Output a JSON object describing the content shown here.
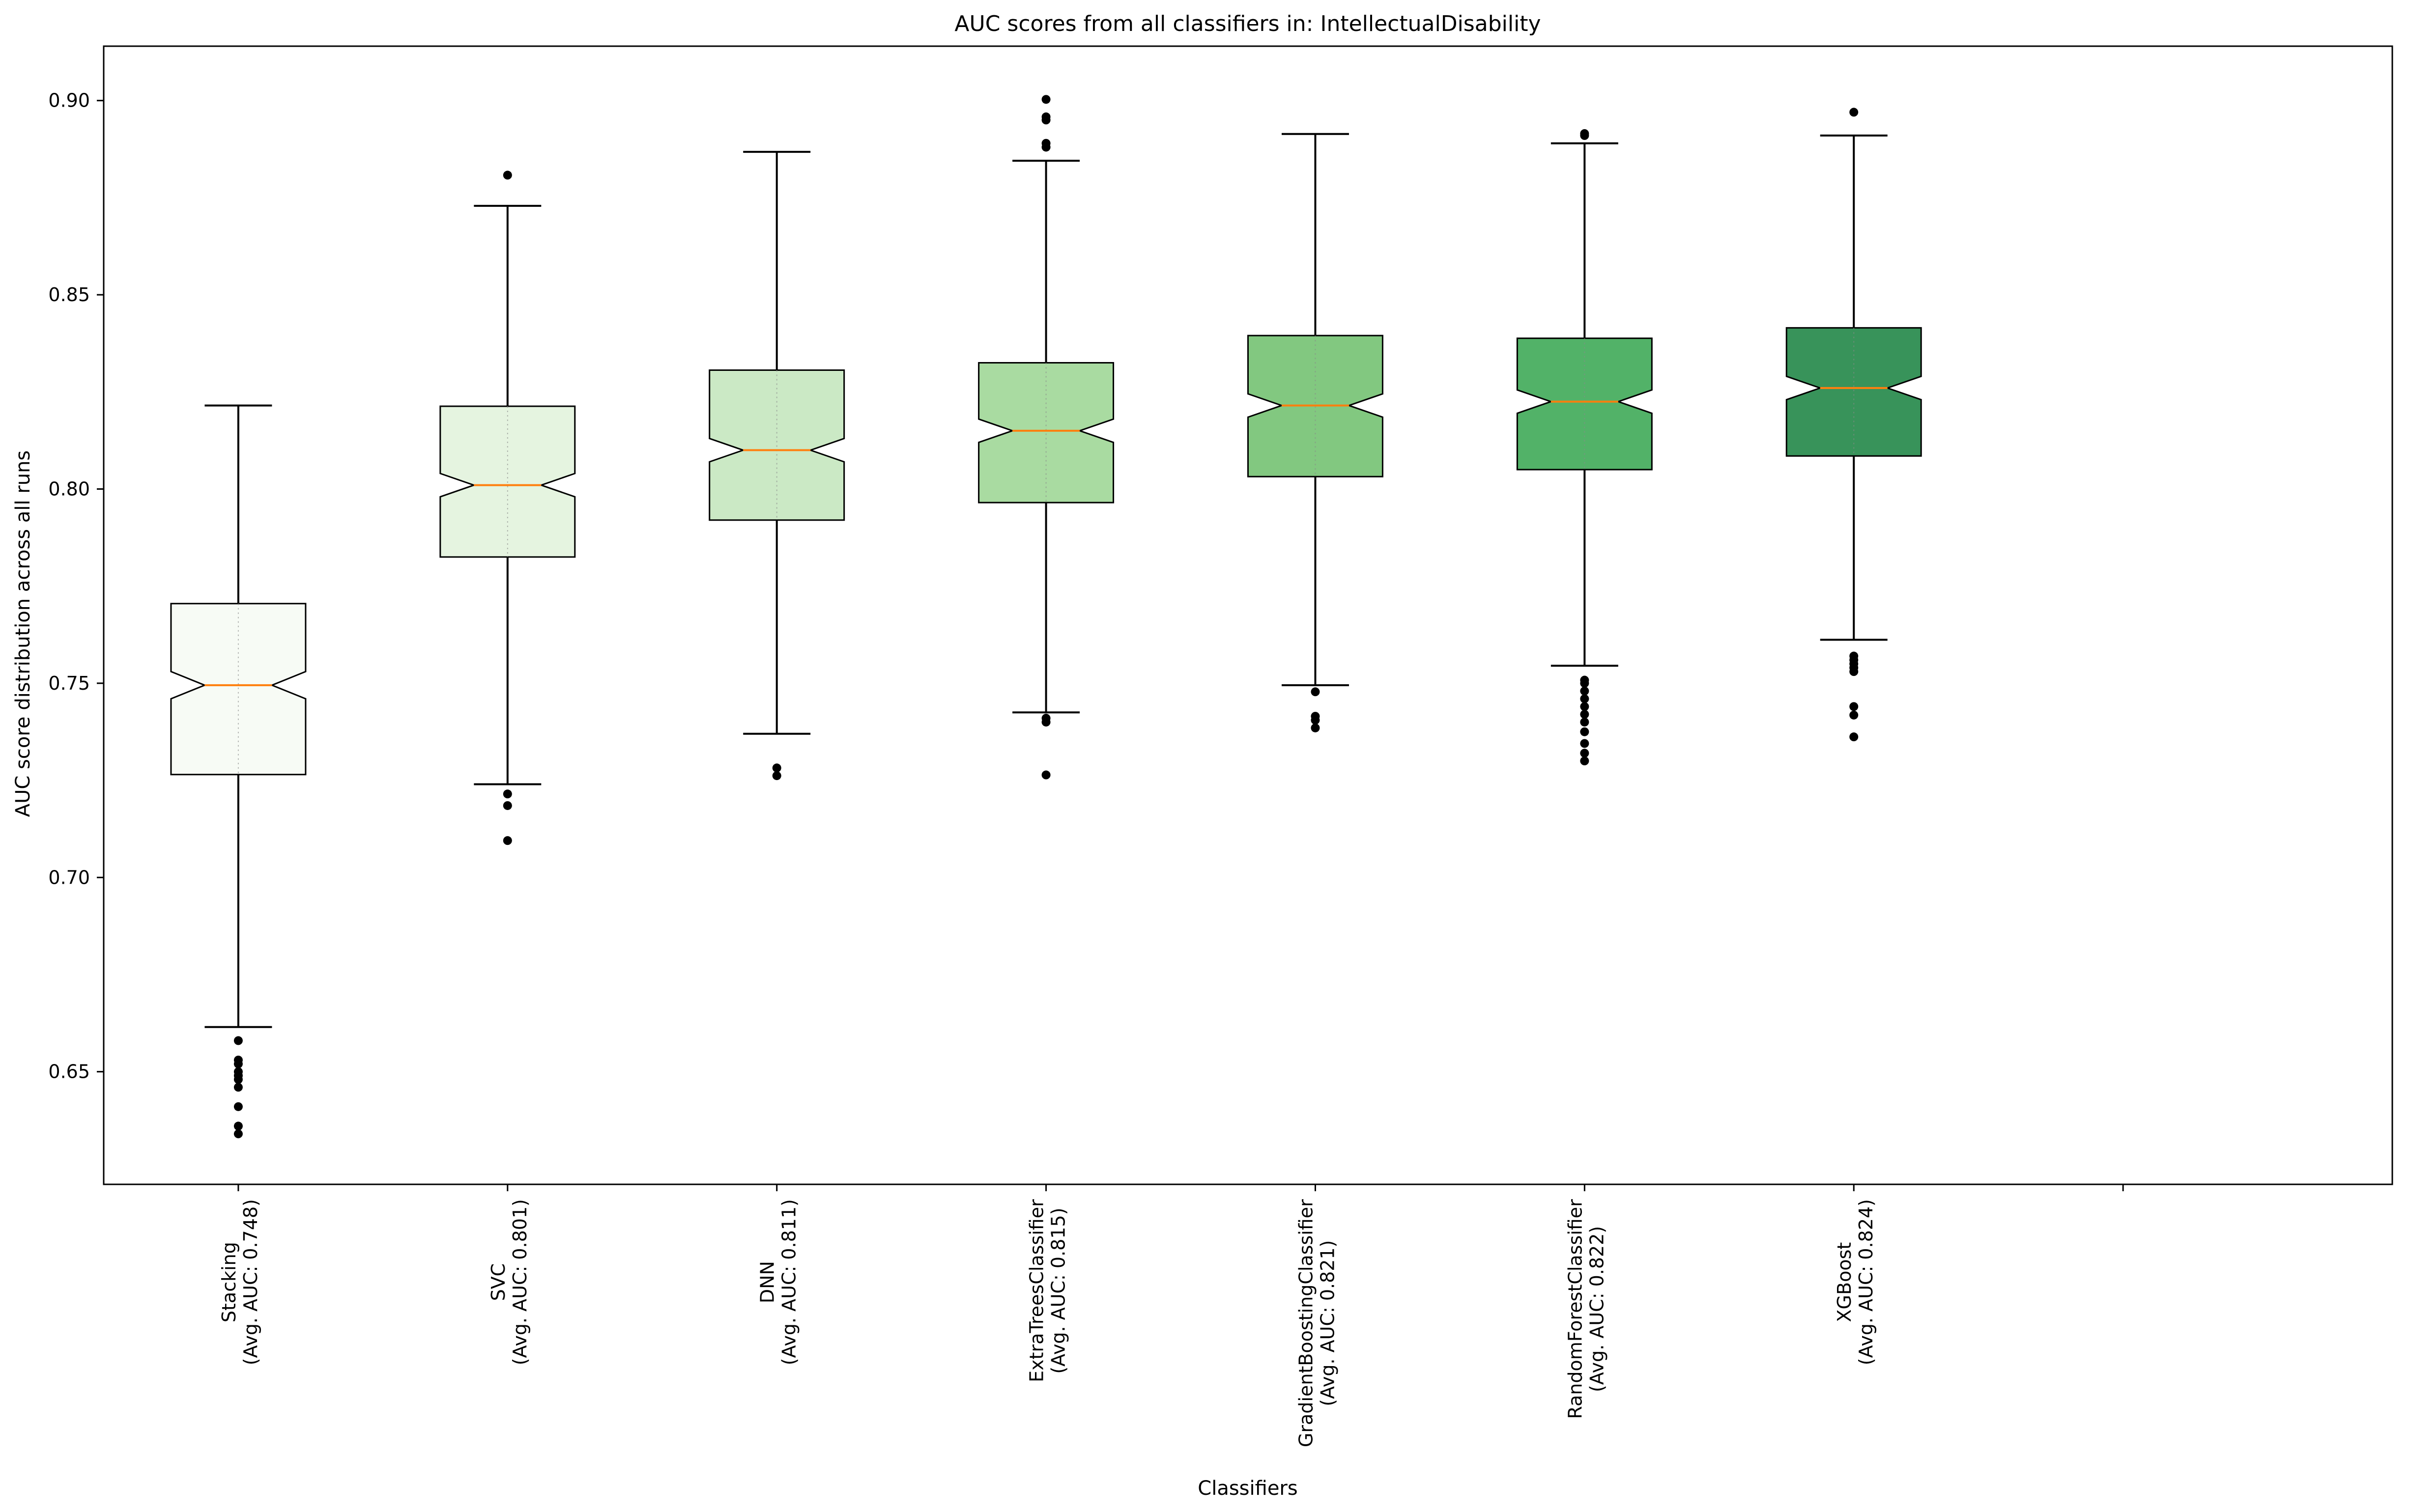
{
  "chart_data": {
    "type": "boxplot",
    "title": "AUC scores from all classifiers in: IntellectualDisability",
    "xlabel": "Classifiers",
    "ylabel": "AUC score distribution across all runs",
    "ylim": [
      0.621,
      0.914
    ],
    "yticks": [
      0.65,
      0.7,
      0.75,
      0.8,
      0.85,
      0.9
    ],
    "ytick_labels": [
      "0.65",
      "0.70",
      "0.75",
      "0.80",
      "0.85",
      "0.90"
    ],
    "grid": false,
    "notched": true,
    "categories": [
      {
        "name": "Stacking",
        "avg_label": "(Avg. AUC: 0.748)"
      },
      {
        "name": "SVC",
        "avg_label": "(Avg. AUC: 0.801)"
      },
      {
        "name": "DNN",
        "avg_label": "(Avg. AUC: 0.811)"
      },
      {
        "name": "ExtraTreesClassifier",
        "avg_label": "(Avg. AUC: 0.815)"
      },
      {
        "name": "GradientBoostingClassifier",
        "avg_label": "(Avg. AUC: 0.821)"
      },
      {
        "name": "RandomForestClassifier",
        "avg_label": "(Avg. AUC: 0.822)"
      },
      {
        "name": "XGBoost",
        "avg_label": "(Avg. AUC: 0.824)"
      }
    ],
    "boxes": [
      {
        "whisker_low": 0.6615,
        "q1": 0.7265,
        "median": 0.7495,
        "q3": 0.7705,
        "whisker_high": 0.8215,
        "notch": 0.0035,
        "outliers": [
          0.634,
          0.636,
          0.641,
          0.646,
          0.648,
          0.649,
          0.65,
          0.652,
          0.653,
          0.658
        ],
        "color": "#f7fbf5"
      },
      {
        "whisker_low": 0.724,
        "q1": 0.7825,
        "median": 0.801,
        "q3": 0.8213,
        "whisker_high": 0.8729,
        "notch": 0.003,
        "outliers": [
          0.7095,
          0.7185,
          0.7215,
          0.8808
        ],
        "color": "#e5f4e0"
      },
      {
        "whisker_low": 0.737,
        "q1": 0.792,
        "median": 0.81,
        "q3": 0.8306,
        "whisker_high": 0.8868,
        "notch": 0.003,
        "outliers": [
          0.7262,
          0.7282
        ],
        "color": "#cbe9c5"
      },
      {
        "whisker_low": 0.7425,
        "q1": 0.7965,
        "median": 0.815,
        "q3": 0.8325,
        "whisker_high": 0.8845,
        "notch": 0.003,
        "outliers": [
          0.7264,
          0.74,
          0.741,
          0.888,
          0.889,
          0.895,
          0.8958,
          0.9003
        ],
        "color": "#a9dba1"
      },
      {
        "whisker_low": 0.7495,
        "q1": 0.8032,
        "median": 0.8215,
        "q3": 0.8395,
        "whisker_high": 0.8914,
        "notch": 0.003,
        "outliers": [
          0.7385,
          0.7405,
          0.7415,
          0.7478
        ],
        "color": "#82c880"
      },
      {
        "whisker_low": 0.7545,
        "q1": 0.805,
        "median": 0.8225,
        "q3": 0.8388,
        "whisker_high": 0.889,
        "notch": 0.003,
        "outliers": [
          0.73,
          0.732,
          0.7345,
          0.7375,
          0.74,
          0.742,
          0.744,
          0.746,
          0.748,
          0.75,
          0.7508,
          0.891,
          0.8915
        ],
        "color": "#52b268"
      },
      {
        "whisker_low": 0.7612,
        "q1": 0.8085,
        "median": 0.826,
        "q3": 0.8415,
        "whisker_high": 0.891,
        "notch": 0.003,
        "outliers": [
          0.7362,
          0.7418,
          0.744,
          0.753,
          0.754,
          0.755,
          0.756,
          0.757,
          0.897
        ],
        "color": "#38935a"
      }
    ],
    "colors": {
      "median": "#ff7f0e",
      "box_edge": "#000000",
      "outlier": "#000000"
    }
  }
}
